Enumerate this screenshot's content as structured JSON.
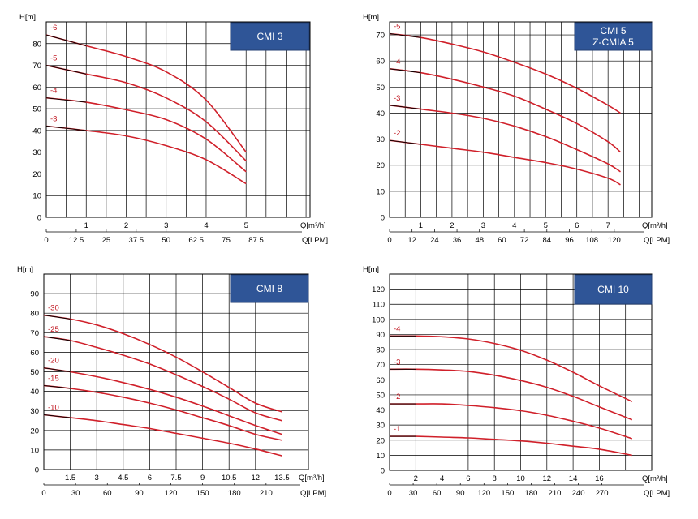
{
  "chart_data": [
    {
      "type": "line",
      "title": "CMI 3",
      "ylabel": "H[m]",
      "xlabel": "Q[m³/h]",
      "x2label": "Q[LPM]",
      "xlim": [
        0,
        6.6
      ],
      "ylim": [
        0,
        90
      ],
      "yticks": [
        0,
        10,
        20,
        30,
        40,
        50,
        60,
        70,
        80
      ],
      "xticks": [
        1,
        2,
        3,
        4,
        5
      ],
      "x2ticks": [
        "0",
        "12.5",
        "25",
        "37.5",
        "50",
        "62.5",
        "75",
        "87.5"
      ],
      "x2range": [
        0,
        110
      ],
      "series": [
        {
          "name": "-6",
          "x": [
            0,
            1,
            2,
            3,
            4,
            5
          ],
          "y": [
            84,
            79,
            74,
            67,
            54,
            30
          ]
        },
        {
          "name": "-5",
          "x": [
            0,
            1,
            2,
            3,
            4,
            5
          ],
          "y": [
            70,
            66,
            62,
            55,
            44,
            26
          ]
        },
        {
          "name": "-4",
          "x": [
            0,
            1,
            2,
            3,
            4,
            5
          ],
          "y": [
            55,
            53,
            49.5,
            45,
            36,
            21
          ]
        },
        {
          "name": "-3",
          "x": [
            0,
            1,
            2,
            3,
            4,
            5
          ],
          "y": [
            42,
            40,
            37.5,
            33,
            26.5,
            15.5
          ]
        }
      ]
    },
    {
      "type": "line",
      "title": "CMI 5",
      "title2": "Z-CMIA 5",
      "ylabel": "H[m]",
      "xlabel": "Q[m³/h]",
      "x2label": "Q[LPM]",
      "xlim": [
        0,
        8.4
      ],
      "ylim": [
        0,
        75
      ],
      "yticks": [
        0,
        10,
        20,
        30,
        40,
        50,
        60,
        70
      ],
      "xticks": [
        1,
        2,
        3,
        4,
        5,
        6,
        7
      ],
      "x2ticks": [
        "0",
        "12",
        "24",
        "36",
        "48",
        "60",
        "72",
        "84",
        "96",
        "108",
        "120"
      ],
      "x2range": [
        0,
        140
      ],
      "series": [
        {
          "name": "-5",
          "x": [
            0,
            1,
            2,
            3,
            4,
            5,
            6,
            7,
            7.4
          ],
          "y": [
            70.5,
            69,
            66.5,
            63.5,
            59.5,
            55,
            49.5,
            43,
            40
          ]
        },
        {
          "name": "-4",
          "x": [
            0,
            1,
            2,
            3,
            4,
            5,
            6,
            7,
            7.4
          ],
          "y": [
            57,
            55.5,
            53,
            50,
            46.5,
            41.5,
            36,
            29,
            25
          ]
        },
        {
          "name": "-3",
          "x": [
            0,
            1,
            2,
            3,
            4,
            5,
            6,
            7,
            7.4
          ],
          "y": [
            43,
            41.5,
            40,
            38,
            35,
            31,
            26,
            20.5,
            17.5
          ]
        },
        {
          "name": "-2",
          "x": [
            0,
            1,
            2,
            3,
            4,
            5,
            6,
            7,
            7.4
          ],
          "y": [
            29.5,
            28,
            26.5,
            25,
            23,
            21,
            18.5,
            15,
            12.5
          ]
        }
      ]
    },
    {
      "type": "line",
      "title": "CMI 8",
      "ylabel": "H[m]",
      "xlabel": "Q[m³/h]",
      "x2label": "Q[LPM]",
      "xlim": [
        0,
        15
      ],
      "ylim": [
        0,
        100
      ],
      "yticks": [
        0,
        10,
        20,
        30,
        40,
        50,
        60,
        70,
        80,
        90
      ],
      "xticks": [
        "1.5",
        "3",
        "4.5",
        "6",
        "7.5",
        "9",
        "10.5",
        "12",
        "13.5"
      ],
      "x2ticks": [
        "0",
        "30",
        "60",
        "90",
        "120",
        "150",
        "180",
        "210"
      ],
      "x2range": [
        0,
        250
      ],
      "series": [
        {
          "name": "-30",
          "x": [
            0,
            1.5,
            3,
            4.5,
            6,
            7.5,
            9,
            10.5,
            12,
            13.5
          ],
          "y": [
            79,
            77,
            74,
            69.5,
            64,
            57.5,
            50,
            42,
            34,
            29.5
          ]
        },
        {
          "name": "-25",
          "x": [
            0,
            1.5,
            3,
            4.5,
            6,
            7.5,
            9,
            10.5,
            12,
            13.5
          ],
          "y": [
            68,
            66,
            62.5,
            58.5,
            54,
            48.5,
            42.5,
            36,
            29,
            25
          ]
        },
        {
          "name": "-20",
          "x": [
            0,
            1.5,
            3,
            4.5,
            6,
            7.5,
            9,
            10.5,
            12,
            13.5
          ],
          "y": [
            52,
            50,
            47.5,
            44.5,
            41,
            37,
            32.5,
            27.5,
            22.5,
            18
          ]
        },
        {
          "name": "-15",
          "x": [
            0,
            1.5,
            3,
            4.5,
            6,
            7.5,
            9,
            10.5,
            12,
            13.5
          ],
          "y": [
            43,
            41.5,
            39.5,
            37,
            34,
            30.5,
            26.5,
            22.5,
            18,
            15
          ]
        },
        {
          "name": "-10",
          "x": [
            0,
            1.5,
            3,
            4.5,
            6,
            7.5,
            9,
            10.5,
            12,
            13.5
          ],
          "y": [
            28,
            26.5,
            25,
            23,
            21,
            18.5,
            16,
            13.5,
            10.5,
            7
          ]
        }
      ]
    },
    {
      "type": "line",
      "title": "CMI 10",
      "ylabel": "H[m]",
      "xlabel": "Q[m³/h]",
      "x2label": "Q[LPM]",
      "xlim": [
        0,
        20
      ],
      "ylim": [
        0,
        130
      ],
      "yticks": [
        0,
        10,
        20,
        30,
        40,
        50,
        60,
        70,
        80,
        90,
        100,
        110,
        120
      ],
      "xticks": [
        2,
        4,
        6,
        8,
        10,
        12,
        14,
        16
      ],
      "x2ticks": [
        "0",
        "30",
        "60",
        "90",
        "120",
        "150",
        "180",
        "210",
        "240",
        "270"
      ],
      "x2range": [
        0,
        333.3
      ],
      "series": [
        {
          "name": "-4",
          "x": [
            0,
            2,
            4,
            6,
            8,
            10,
            12,
            14,
            16,
            18.5
          ],
          "y": [
            89,
            89,
            88.5,
            87,
            84,
            79.5,
            73,
            65,
            56,
            45.5
          ]
        },
        {
          "name": "-3",
          "x": [
            0,
            2,
            4,
            6,
            8,
            10,
            12,
            14,
            16,
            18.5
          ],
          "y": [
            67,
            67,
            66.5,
            65.5,
            63,
            59.5,
            55,
            49,
            42,
            33.5
          ]
        },
        {
          "name": "-2",
          "x": [
            0,
            2,
            4,
            6,
            8,
            10,
            12,
            14,
            16,
            18.5
          ],
          "y": [
            44,
            44,
            44,
            43,
            41.5,
            39.5,
            36.5,
            32.5,
            28,
            21
          ]
        },
        {
          "name": "-1",
          "x": [
            0,
            2,
            4,
            6,
            8,
            10,
            12,
            14,
            16,
            18.5
          ],
          "y": [
            22.5,
            22.5,
            22,
            21.5,
            20.5,
            19.5,
            18,
            16,
            14,
            10
          ]
        }
      ]
    }
  ]
}
